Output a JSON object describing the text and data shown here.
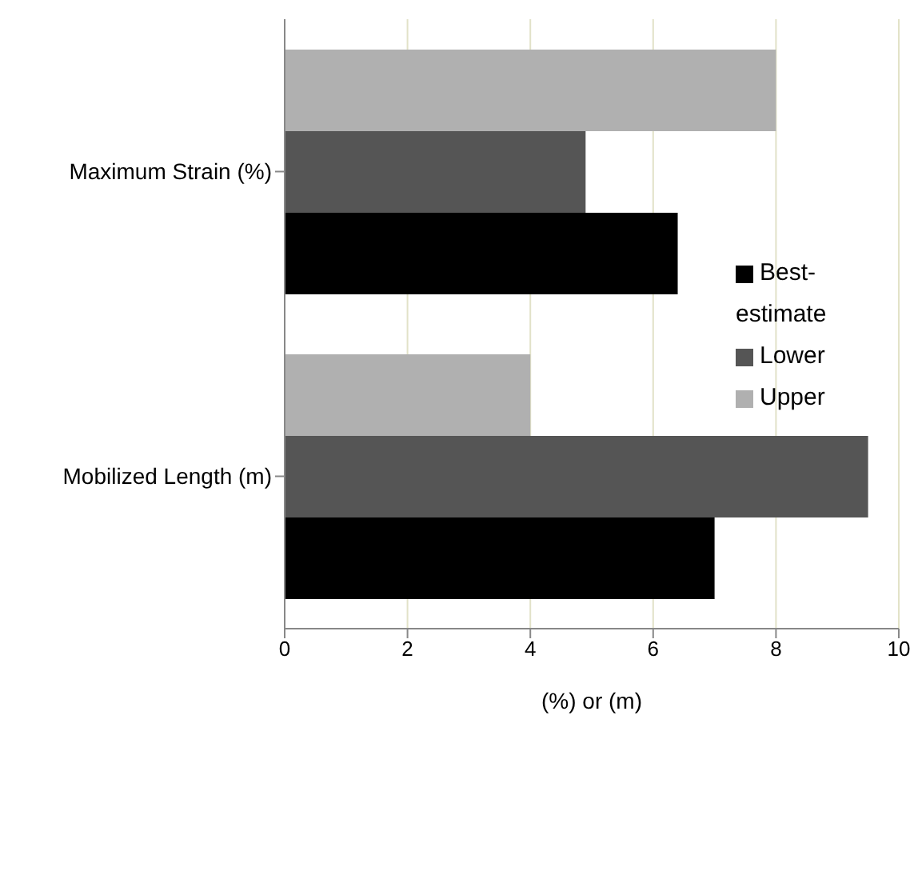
{
  "chart_data": {
    "type": "bar",
    "orientation": "horizontal",
    "xlabel": "(%) or (m)",
    "categories": [
      "Maximum Strain (%)",
      "Mobilized Length (m)"
    ],
    "series": [
      {
        "name": "Upper",
        "color": "#b0b0b0",
        "values": [
          8,
          4
        ]
      },
      {
        "name": "Lower",
        "color": "#555555",
        "values": [
          4.9,
          9.5
        ]
      },
      {
        "name": "Best-estimate",
        "color": "#000000",
        "values": [
          6.4,
          7
        ]
      }
    ],
    "xlim": [
      0,
      10
    ],
    "xticks": [
      0,
      2,
      4,
      6,
      8,
      10
    ],
    "grid": "x",
    "legend": "right"
  }
}
